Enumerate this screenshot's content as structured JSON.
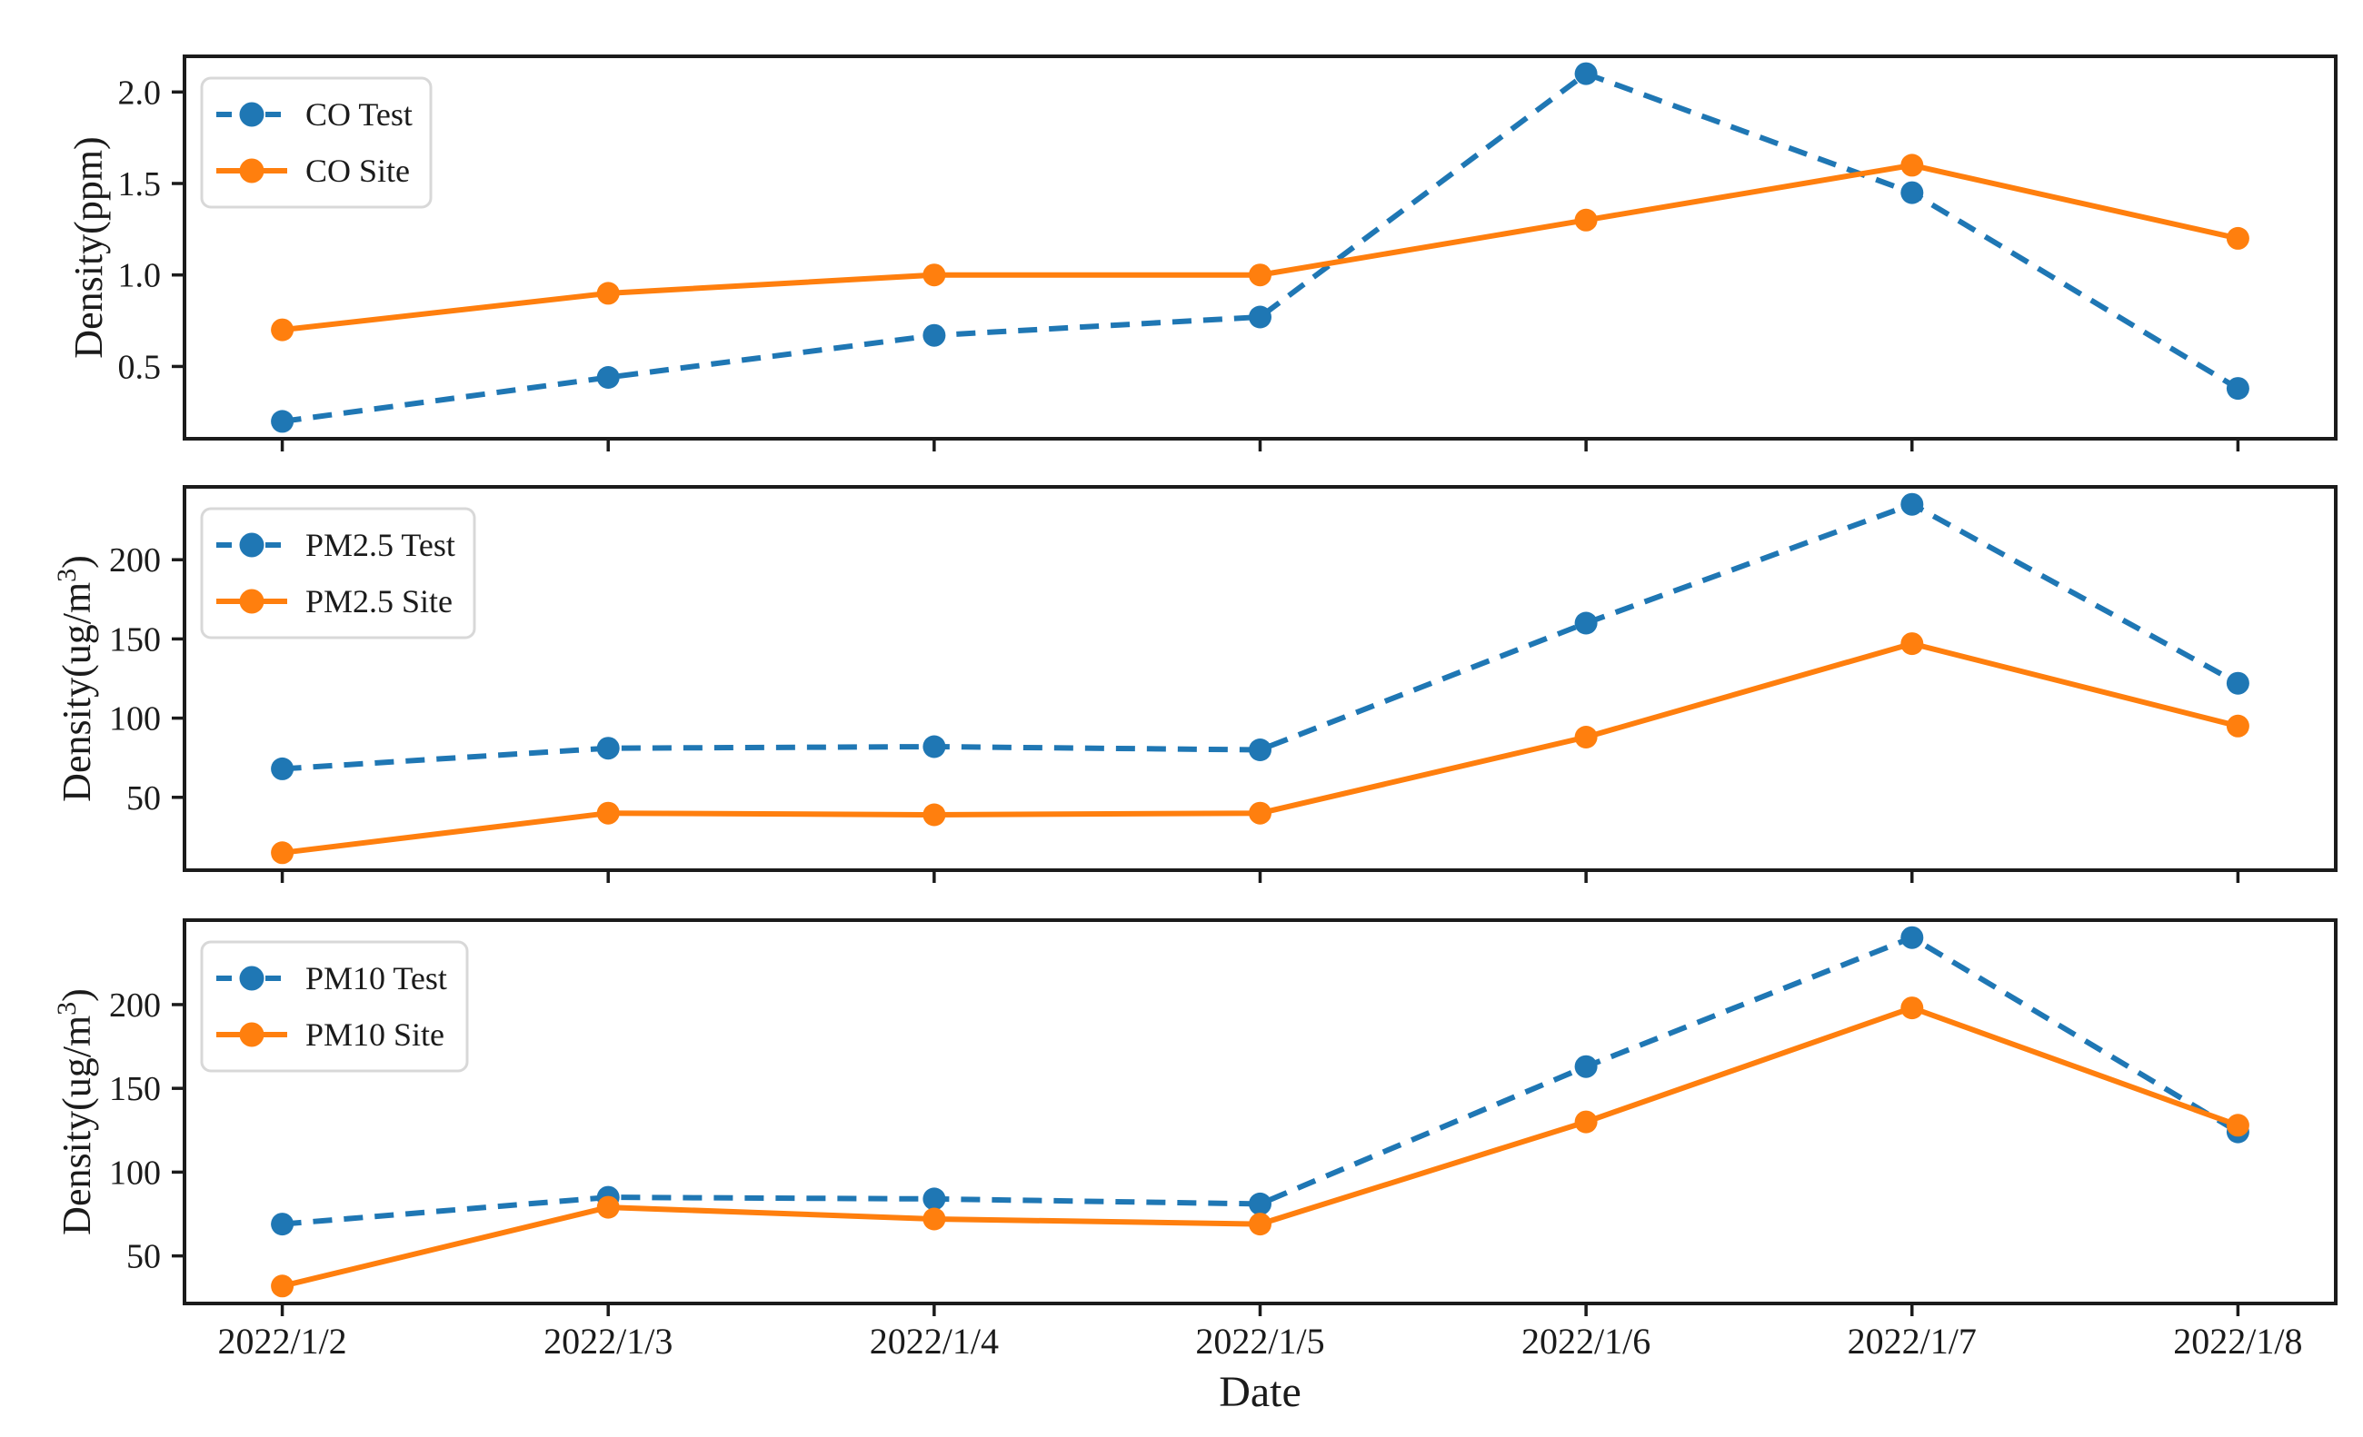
{
  "figure": {
    "title": "",
    "xlabel": "Date",
    "background": "#ffffff"
  },
  "colors": {
    "test_blue": "#1f77b4",
    "site_orange": "#ff7f0e",
    "axis": "#1b1b1b",
    "legend_border": "#d8d8d8",
    "legend_background": "#ffffff"
  },
  "chart_data": [
    {
      "id": "co",
      "type": "line",
      "title": "",
      "xlabel": "",
      "ylabel": "Density(ppm)",
      "categories": [
        "2022/1/2",
        "2022/1/3",
        "2022/1/4",
        "2022/1/5",
        "2022/1/6",
        "2022/1/7",
        "2022/1/8"
      ],
      "show_x_tick_labels": false,
      "yticks": [
        "0.5",
        "1.0",
        "1.5",
        "2.0"
      ],
      "ylim": [
        0.105,
        2.195
      ],
      "grid": false,
      "legend_position": "upper left",
      "series": [
        {
          "name": "CO Test",
          "color": "#1f77b4",
          "line_style": "dashed",
          "marker": "circle",
          "values": [
            0.2,
            0.44,
            0.67,
            0.77,
            2.1,
            1.45,
            0.38
          ]
        },
        {
          "name": "CO Site",
          "color": "#ff7f0e",
          "line_style": "solid",
          "marker": "circle",
          "values": [
            0.7,
            0.9,
            1.0,
            1.0,
            1.3,
            1.6,
            1.2
          ]
        }
      ]
    },
    {
      "id": "pm25",
      "type": "line",
      "title": "",
      "xlabel": "",
      "ylabel": "Density(ug/m³)",
      "categories": [
        "2022/1/2",
        "2022/1/3",
        "2022/1/4",
        "2022/1/5",
        "2022/1/6",
        "2022/1/7",
        "2022/1/8"
      ],
      "show_x_tick_labels": false,
      "yticks": [
        "50",
        "100",
        "150",
        "200"
      ],
      "ylim": [
        4,
        246
      ],
      "grid": false,
      "legend_position": "upper left",
      "series": [
        {
          "name": "PM2.5 Test",
          "color": "#1f77b4",
          "line_style": "dashed",
          "marker": "circle",
          "values": [
            68,
            81,
            82,
            80,
            160,
            235,
            122
          ]
        },
        {
          "name": "PM2.5 Site",
          "color": "#ff7f0e",
          "line_style": "solid",
          "marker": "circle",
          "values": [
            15,
            40,
            39,
            40,
            88,
            147,
            95
          ]
        }
      ]
    },
    {
      "id": "pm10",
      "type": "line",
      "title": "",
      "xlabel": "Date",
      "ylabel": "Density(ug/m³)",
      "categories": [
        "2022/1/2",
        "2022/1/3",
        "2022/1/4",
        "2022/1/5",
        "2022/1/6",
        "2022/1/7",
        "2022/1/8"
      ],
      "show_x_tick_labels": true,
      "yticks": [
        "50",
        "100",
        "150",
        "200"
      ],
      "ylim": [
        21.6,
        250.4
      ],
      "grid": false,
      "legend_position": "upper left",
      "series": [
        {
          "name": "PM10 Test",
          "color": "#1f77b4",
          "line_style": "dashed",
          "marker": "circle",
          "values": [
            69,
            85,
            84,
            81,
            163,
            240,
            124
          ]
        },
        {
          "name": "PM10 Site",
          "color": "#ff7f0e",
          "line_style": "solid",
          "marker": "circle",
          "values": [
            32,
            79,
            72,
            69,
            130,
            198,
            128
          ]
        }
      ]
    }
  ]
}
